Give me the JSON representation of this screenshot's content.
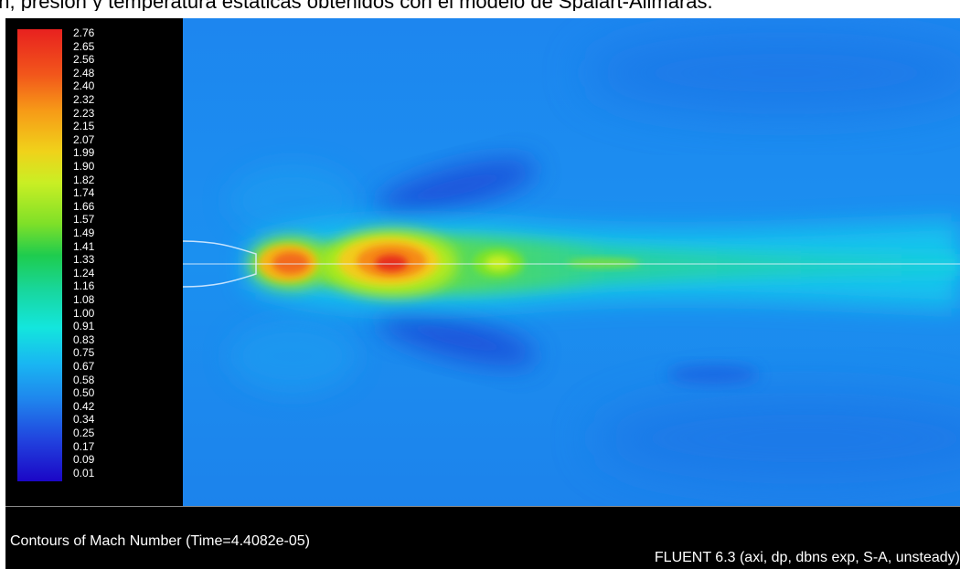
{
  "caption": "ón, presión y temperatura estáticas obtenidos con el modelo de Spalart-Allmaras.",
  "colorbar": {
    "ticks": [
      "2.76",
      "2.65",
      "2.56",
      "2.48",
      "2.40",
      "2.32",
      "2.23",
      "2.15",
      "2.07",
      "1.99",
      "1.90",
      "1.82",
      "1.74",
      "1.66",
      "1.57",
      "1.49",
      "1.41",
      "1.33",
      "1.24",
      "1.16",
      "1.08",
      "1.00",
      "0.91",
      "0.83",
      "0.75",
      "0.67",
      "0.58",
      "0.50",
      "0.42",
      "0.34",
      "0.25",
      "0.17",
      "0.09",
      "0.01"
    ]
  },
  "plot": {
    "title": "Contours of Mach Number  (Time=4.4082e-05)",
    "solver": "FLUENT 6.3 (axi, dp, dbns exp, S-A, unsteady)"
  }
}
